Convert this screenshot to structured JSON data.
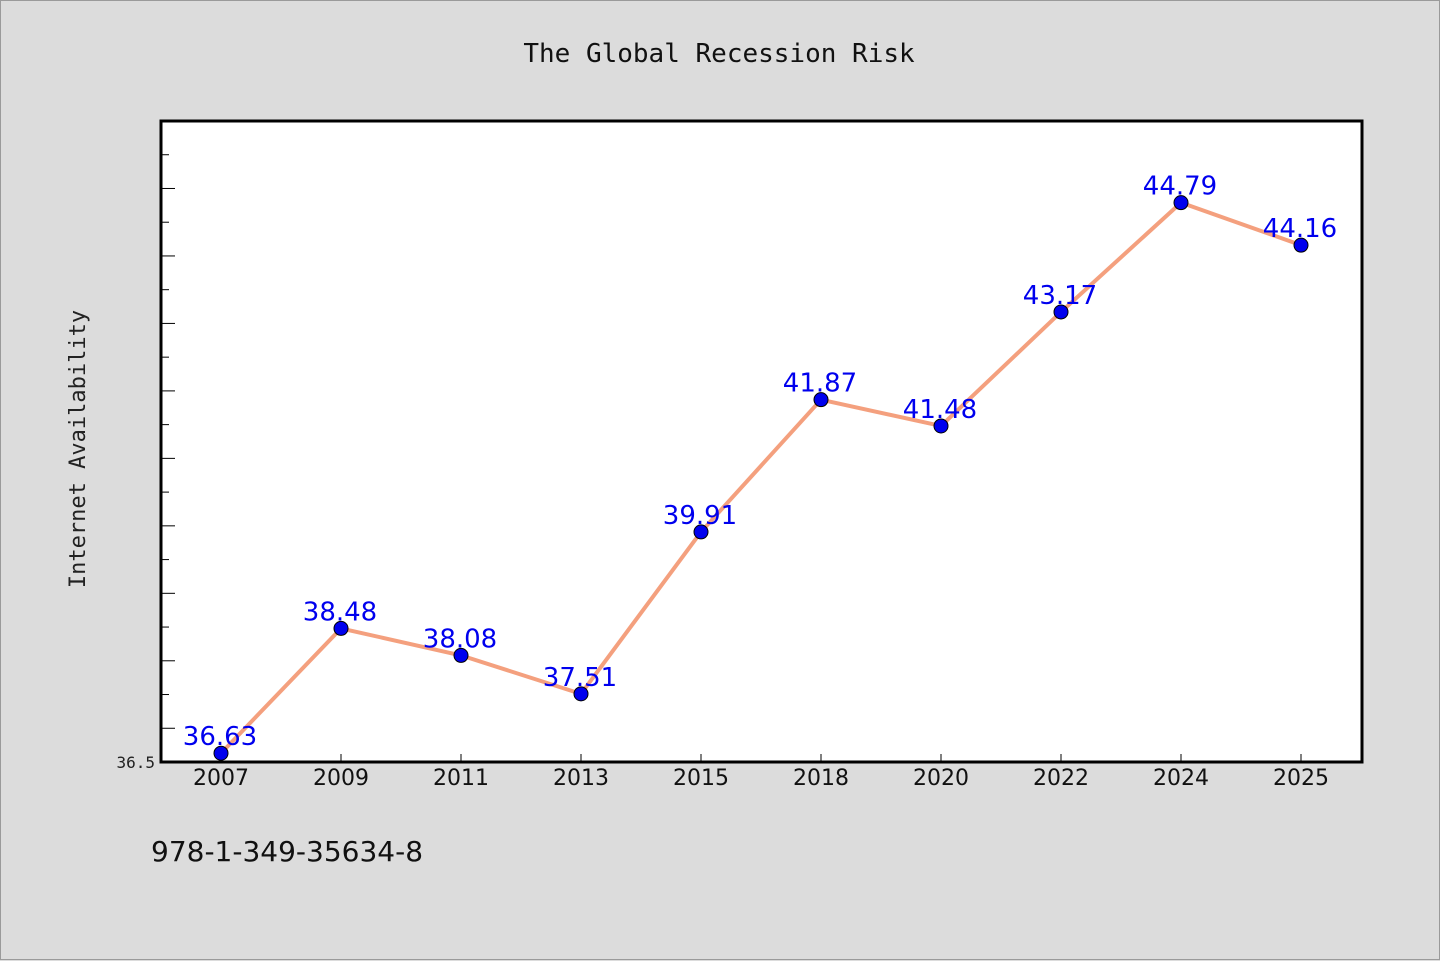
{
  "chart_data": {
    "type": "line",
    "title": "The Global Recession Risk",
    "xlabel": "",
    "ylabel": "Internet Availability",
    "categories": [
      "2007",
      "2009",
      "2011",
      "2013",
      "2015",
      "2018",
      "2020",
      "2022",
      "2024",
      "2025"
    ],
    "series": [
      {
        "values": [
          36.63,
          38.48,
          38.08,
          37.51,
          39.91,
          41.87,
          41.48,
          43.17,
          44.79,
          44.16
        ],
        "labels": [
          "36.63",
          "38.48",
          "38.08",
          "37.51",
          "39.91",
          "41.87",
          "41.48",
          "43.17",
          "44.79",
          "44.16"
        ]
      }
    ],
    "ylim": [
      36.5,
      46.0
    ],
    "yticks_labeled": [
      "36.5"
    ],
    "grid": false,
    "legend": "none",
    "colors": {
      "line": "#f4a07e",
      "marker": "#0000ee",
      "label": "#0000ee",
      "background": "#dcdcdc",
      "plot_background": "#ffffff"
    }
  },
  "footer": {
    "code": "978-1-349-35634-8"
  }
}
